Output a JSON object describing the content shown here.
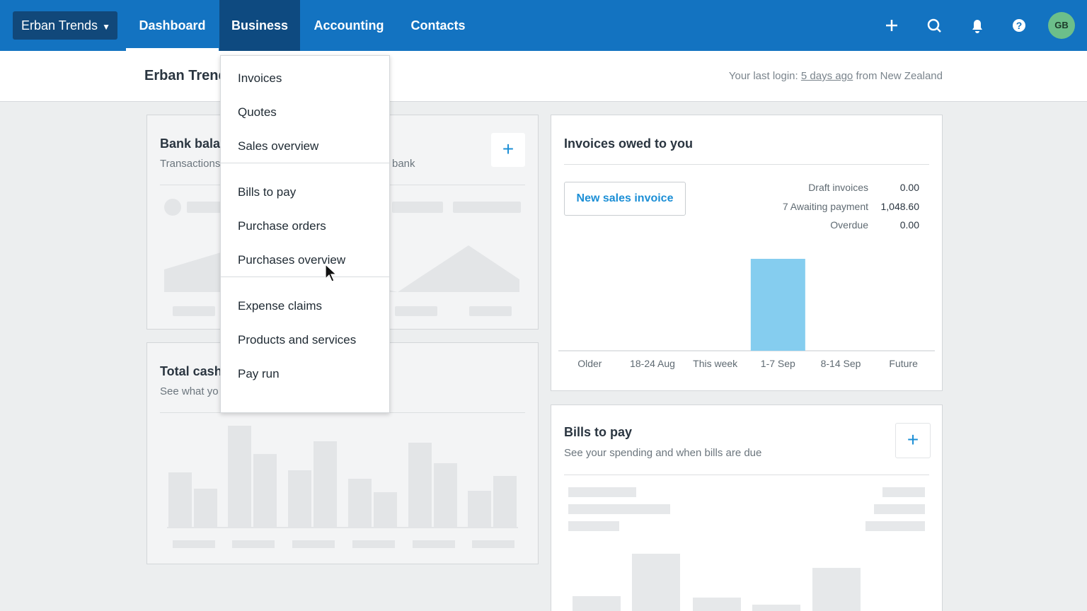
{
  "nav": {
    "org": "Erban Trends",
    "tabs": [
      "Dashboard",
      "Business",
      "Accounting",
      "Contacts"
    ],
    "avatar": "GB"
  },
  "subheader": {
    "org": "Erban Trends",
    "login_prefix": "Your last login:",
    "login_link": "5 days ago",
    "login_suffix": "from New Zealand"
  },
  "business_menu": [
    [
      "Invoices",
      "Quotes",
      "Sales overview"
    ],
    [
      "Bills to pay",
      "Purchase orders",
      "Purchases overview"
    ],
    [
      "Expense claims",
      "Products and services",
      "Pay run"
    ]
  ],
  "bank_card": {
    "title": "Bank bala",
    "subtitle_left": "Transactions",
    "subtitle_right": "bank"
  },
  "cash_card": {
    "title": "Total cash",
    "subtitle": "See what yo"
  },
  "invoices_card": {
    "title": "Invoices owed to you",
    "button": "New sales invoice",
    "summary": [
      {
        "label": "Draft invoices",
        "amount": "0.00"
      },
      {
        "label": "7 Awaiting payment",
        "amount": "1,048.60"
      },
      {
        "label": "Overdue",
        "amount": "0.00"
      }
    ]
  },
  "chart_data": {
    "type": "bar",
    "categories": [
      "Older",
      "18-24 Aug",
      "This week",
      "1-7 Sep",
      "8-14 Sep",
      "Future"
    ],
    "values": [
      0,
      0,
      0,
      1048.6,
      0,
      0
    ],
    "color": "#85cdef"
  },
  "bills_card": {
    "title": "Bills to pay",
    "subtitle": "See your spending and when bills are due"
  }
}
